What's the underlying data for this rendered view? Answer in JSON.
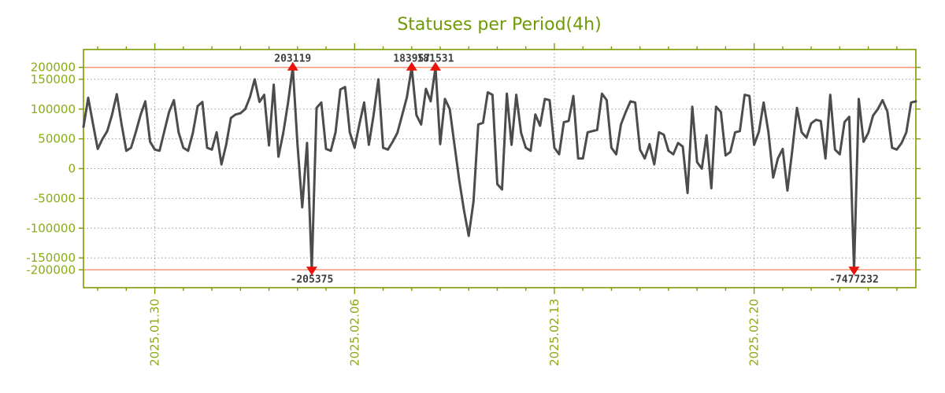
{
  "title": "Statuses per Period(4h)",
  "colors": {
    "background": "#ffffff",
    "axis_frame": "#7d9c04",
    "tick_label": "#8aab15",
    "title": "#6f9a06",
    "grid": "#999999",
    "clip_line": "#f2825f",
    "series_line": "#4c4c4c",
    "marker": "#e81309",
    "annotation_text": "#3d3d3d"
  },
  "chart_data": {
    "type": "line",
    "title": "Statuses per Period(4h)",
    "xlabel": "",
    "ylabel": "",
    "period_hours": 4,
    "points_per_day": 6,
    "ylim": [
      -200000,
      200000
    ],
    "ytick_step": 50000,
    "ytick_values": [
      200000,
      150000,
      100000,
      50000,
      0,
      -50000,
      -100000,
      -150000,
      -200000
    ],
    "ytick_labels": [
      "200000",
      "150000",
      "100000",
      "50000",
      "0",
      "-50000",
      "-100000",
      "-150000",
      "-200000"
    ],
    "x_major_ticks": [
      {
        "index": 15,
        "label": "2025.01.30"
      },
      {
        "index": 57,
        "label": "2025.02.06"
      },
      {
        "index": 99,
        "label": "2025.02.13"
      },
      {
        "index": 141,
        "label": "2025.02.20"
      }
    ],
    "x_minor_tick_every_points": 6,
    "x_minor_tick_phase": 3,
    "grid": true,
    "legend": false,
    "clip_value": 170000,
    "values": [
      70000,
      119000,
      75000,
      33000,
      50000,
      63000,
      90000,
      125000,
      75000,
      30000,
      35000,
      61000,
      90000,
      113000,
      45000,
      32000,
      30000,
      63000,
      95000,
      115000,
      61000,
      35000,
      30000,
      60000,
      105000,
      112000,
      35000,
      32000,
      61000,
      7000,
      40000,
      85000,
      91000,
      93000,
      100000,
      120000,
      150000,
      112000,
      124000,
      39000,
      141000,
      20000,
      60000,
      110000,
      203119,
      40000,
      -65000,
      43000,
      -205375,
      102000,
      111000,
      33000,
      30000,
      61000,
      133000,
      137000,
      61000,
      35000,
      74000,
      111000,
      40000,
      90000,
      150000,
      35000,
      32000,
      45000,
      60000,
      90000,
      120000,
      183957,
      90000,
      74000,
      134000,
      113000,
      181531,
      41000,
      117000,
      100000,
      40000,
      -20000,
      -70000,
      -113000,
      -55000,
      74000,
      77000,
      128000,
      124000,
      -26000,
      -35000,
      126000,
      40000,
      124000,
      60000,
      35000,
      30000,
      91000,
      72000,
      117000,
      115000,
      35000,
      24000,
      78000,
      80000,
      122000,
      17000,
      17000,
      61000,
      63000,
      65000,
      126000,
      115000,
      35000,
      24000,
      74000,
      95000,
      113000,
      111000,
      32000,
      17000,
      41000,
      7000,
      61000,
      57000,
      30000,
      24000,
      43000,
      37000,
      -41000,
      104000,
      11000,
      0,
      56000,
      -33000,
      104000,
      95000,
      22000,
      28000,
      61000,
      63000,
      124000,
      122000,
      40000,
      62000,
      111000,
      61000,
      -15000,
      17000,
      33000,
      -37000,
      30000,
      102000,
      61000,
      52000,
      76000,
      82000,
      80000,
      17000,
      124000,
      32000,
      24000,
      78000,
      87000,
      -7477232,
      117000,
      45000,
      60000,
      89000,
      100000,
      115000,
      96000,
      35000,
      32000,
      43000,
      61000,
      111000,
      113000
    ],
    "annotations": [
      {
        "index": 44,
        "value": 203119,
        "label": "203119",
        "position": "top"
      },
      {
        "index": 69,
        "value": 183957,
        "label": "183957",
        "position": "top"
      },
      {
        "index": 74,
        "value": 181531,
        "label": "181531",
        "position": "top"
      },
      {
        "index": 48,
        "value": -205375,
        "label": "-205375",
        "position": "bottom"
      },
      {
        "index": 162,
        "value": -7477232,
        "label": "-7477232",
        "position": "bottom"
      }
    ]
  }
}
